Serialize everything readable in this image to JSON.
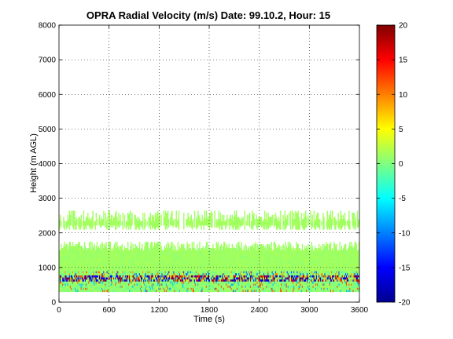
{
  "chart_data": {
    "type": "heatmap",
    "title": "OPRA Radial Velocity (m/s)  Date: 99.10.2, Hour: 15",
    "xlabel": "Time (s)",
    "ylabel": "Height (m AGL)",
    "xlim": [
      0,
      3600
    ],
    "ylim": [
      0,
      8000
    ],
    "xticks": [
      0,
      600,
      1200,
      1800,
      2400,
      3000,
      3600
    ],
    "xtick_labels": [
      "0",
      "600",
      "1200",
      "1800",
      "2400",
      "3000",
      "3600"
    ],
    "yticks": [
      0,
      1000,
      2000,
      3000,
      4000,
      5000,
      6000,
      7000,
      8000
    ],
    "ytick_labels": [
      "0",
      "1000",
      "2000",
      "3000",
      "4000",
      "5000",
      "6000",
      "7000",
      "8000"
    ],
    "grid": true,
    "colorbar": {
      "colormap": "jet",
      "range": [
        -20,
        20
      ],
      "ticks": [
        -20,
        -15,
        -10,
        -5,
        0,
        5,
        10,
        15,
        20
      ],
      "tick_labels": [
        "-20",
        "-15",
        "-10",
        "-5",
        "0",
        "5",
        "10",
        "15",
        "20"
      ]
    },
    "layers": [
      {
        "height_range": [
          2100,
          2700
        ],
        "typical_value": 1,
        "coverage": "intermittent"
      },
      {
        "height_range": [
          900,
          1800
        ],
        "typical_value": 1,
        "coverage": "nearly continuous"
      },
      {
        "height_range": [
          300,
          900
        ],
        "typical_value": 0,
        "coverage": "continuous, mixed strong positive and negative near 700"
      }
    ]
  }
}
